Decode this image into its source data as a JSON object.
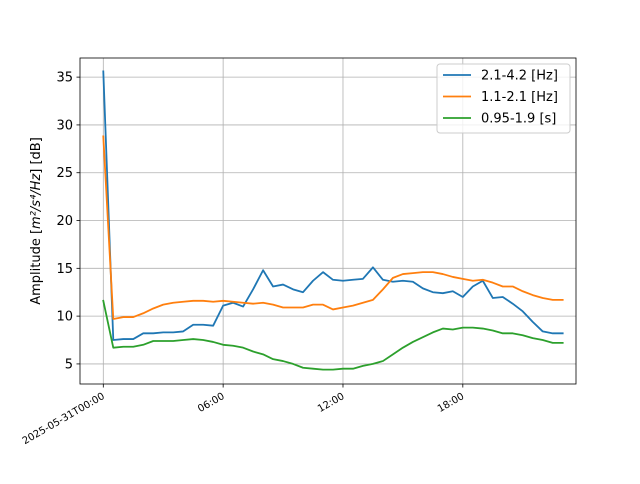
{
  "chart_data": {
    "type": "line",
    "title": "",
    "xlabel": "",
    "ylabel": "Amplitude [m²/s⁴/Hz] [dB]",
    "ylabel_parts": {
      "prefix": "Amplitude [",
      "unit": "m²/s⁴/Hz",
      "suffix": "] [dB]"
    },
    "xlim": [
      "2025-05-30T22:50:00",
      "2025-05-31T23:40:00"
    ],
    "ylim": [
      2.9,
      37.0
    ],
    "xticks": [
      {
        "t": "2025-05-31T00:00:00",
        "label": "2025-05-31T00:00"
      },
      {
        "t": "2025-05-31T06:00:00",
        "label": "06:00"
      },
      {
        "t": "2025-05-31T12:00:00",
        "label": "12:00"
      },
      {
        "t": "2025-05-31T18:00:00",
        "label": "18:00"
      }
    ],
    "yticks": [
      5,
      10,
      15,
      20,
      25,
      30,
      35
    ],
    "grid": true,
    "legend_position": "top-right",
    "x": [
      "2025-05-31T00:00",
      "2025-05-31T00:30",
      "2025-05-31T01:00",
      "2025-05-31T01:30",
      "2025-05-31T02:00",
      "2025-05-31T02:30",
      "2025-05-31T03:00",
      "2025-05-31T03:30",
      "2025-05-31T04:00",
      "2025-05-31T04:30",
      "2025-05-31T05:00",
      "2025-05-31T05:30",
      "2025-05-31T06:00",
      "2025-05-31T06:30",
      "2025-05-31T07:00",
      "2025-05-31T07:30",
      "2025-05-31T08:00",
      "2025-05-31T08:30",
      "2025-05-31T09:00",
      "2025-05-31T09:30",
      "2025-05-31T10:00",
      "2025-05-31T10:30",
      "2025-05-31T11:00",
      "2025-05-31T11:30",
      "2025-05-31T12:00",
      "2025-05-31T12:30",
      "2025-05-31T13:00",
      "2025-05-31T13:30",
      "2025-05-31T14:00",
      "2025-05-31T14:30",
      "2025-05-31T15:00",
      "2025-05-31T15:30",
      "2025-05-31T16:00",
      "2025-05-31T16:30",
      "2025-05-31T17:00",
      "2025-05-31T17:30",
      "2025-05-31T18:00",
      "2025-05-31T18:30",
      "2025-05-31T19:00",
      "2025-05-31T19:30",
      "2025-05-31T20:00",
      "2025-05-31T20:30",
      "2025-05-31T21:00",
      "2025-05-31T21:30",
      "2025-05-31T22:00",
      "2025-05-31T22:30",
      "2025-05-31T23:00"
    ],
    "series": [
      {
        "name": "2.1-4.2 [Hz]",
        "color": "#1f77b4",
        "values": [
          35.6,
          7.5,
          7.6,
          7.6,
          8.2,
          8.2,
          8.3,
          8.3,
          8.4,
          9.1,
          9.1,
          9.0,
          11.1,
          11.4,
          11.0,
          12.8,
          14.8,
          13.1,
          13.3,
          12.8,
          12.5,
          13.7,
          14.6,
          13.8,
          13.7,
          13.8,
          13.9,
          15.1,
          13.8,
          13.6,
          13.7,
          13.6,
          12.9,
          12.5,
          12.4,
          12.6,
          12.0,
          13.1,
          13.7,
          11.9,
          12.0,
          11.3,
          10.5,
          9.4,
          8.4,
          8.2,
          8.2
        ]
      },
      {
        "name": "1.1-2.1 [Hz]",
        "color": "#ff7f0e",
        "values": [
          28.8,
          9.7,
          9.9,
          9.9,
          10.3,
          10.8,
          11.2,
          11.4,
          11.5,
          11.6,
          11.6,
          11.5,
          11.6,
          11.5,
          11.4,
          11.3,
          11.4,
          11.2,
          10.9,
          10.9,
          10.9,
          11.2,
          11.2,
          10.7,
          10.9,
          11.1,
          11.4,
          11.7,
          12.8,
          14.0,
          14.4,
          14.5,
          14.6,
          14.6,
          14.4,
          14.1,
          13.9,
          13.7,
          13.8,
          13.5,
          13.1,
          13.1,
          12.6,
          12.2,
          11.9,
          11.7,
          11.7
        ]
      },
      {
        "name": "0.95-1.9 [s]",
        "color": "#2ca02c",
        "values": [
          11.6,
          6.7,
          6.8,
          6.8,
          7.0,
          7.4,
          7.4,
          7.4,
          7.5,
          7.6,
          7.5,
          7.3,
          7.0,
          6.9,
          6.7,
          6.3,
          6.0,
          5.5,
          5.3,
          5.0,
          4.6,
          4.5,
          4.4,
          4.4,
          4.5,
          4.5,
          4.8,
          5.0,
          5.3,
          6.0,
          6.7,
          7.3,
          7.8,
          8.3,
          8.7,
          8.6,
          8.8,
          8.8,
          8.7,
          8.5,
          8.2,
          8.2,
          8.0,
          7.7,
          7.5,
          7.2,
          7.2
        ]
      }
    ]
  }
}
